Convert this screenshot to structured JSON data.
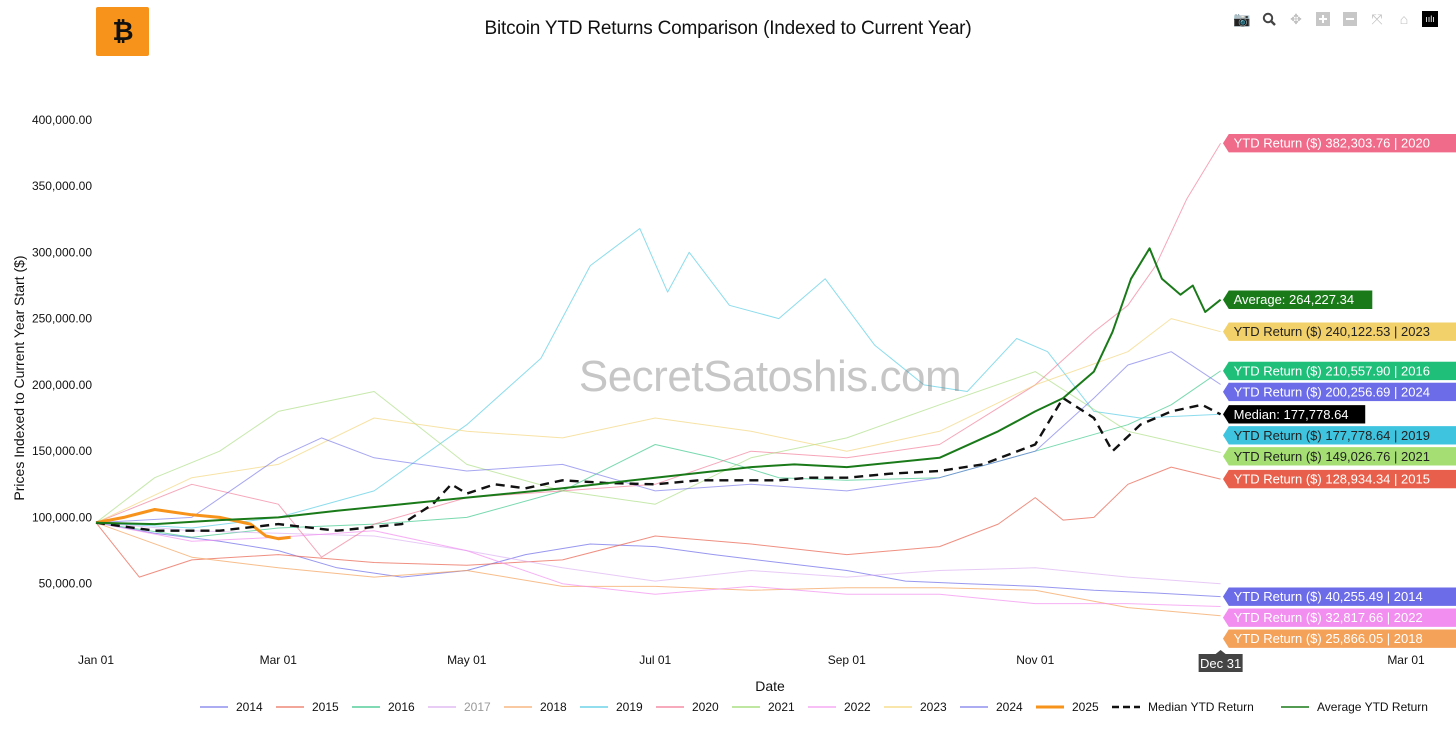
{
  "title": "Bitcoin YTD Returns Comparison (Indexed to Current Year)",
  "watermark": "SecretSatoshis.com",
  "logo_icon": "bitcoin-logo-icon",
  "modebar": [
    "camera-icon",
    "zoom-icon",
    "pan-icon",
    "zoom-in-icon",
    "zoom-out-icon",
    "autoscale-icon",
    "reset-axes-icon",
    "plotly-logo-icon"
  ],
  "chart_data": {
    "type": "line",
    "title": "Bitcoin YTD Returns Comparison (Indexed to Current Year)",
    "xlabel": "Date",
    "ylabel": "Prices Indexed to Current Year Start ($)",
    "x_range": [
      "2025-01-01",
      "2026-03-01"
    ],
    "ylim": [
      0,
      430000
    ],
    "x_ticks": [
      {
        "date": "2025-01-01",
        "label": "Jan 01"
      },
      {
        "date": "2025-03-01",
        "label": "Mar 01"
      },
      {
        "date": "2025-05-01",
        "label": "May 01"
      },
      {
        "date": "2025-07-01",
        "label": "Jul 01"
      },
      {
        "date": "2025-09-01",
        "label": "Sep 01"
      },
      {
        "date": "2025-11-01",
        "label": "Nov 01"
      },
      {
        "date": "2026-03-01",
        "label": "Mar 01"
      }
    ],
    "y_ticks": [
      {
        "value": 50000,
        "label": "50,000.00"
      },
      {
        "value": 100000,
        "label": "100,000.00"
      },
      {
        "value": 150000,
        "label": "150,000.00"
      },
      {
        "value": 200000,
        "label": "200,000.00"
      },
      {
        "value": 250000,
        "label": "250,000.00"
      },
      {
        "value": 300000,
        "label": "300,000.00"
      },
      {
        "value": 350000,
        "label": "350,000.00"
      },
      {
        "value": 400000,
        "label": "400,000.00"
      }
    ],
    "grid": false,
    "legend_position": "bottom",
    "hover_x_label": "Dec 31",
    "series": [
      {
        "name": "2014",
        "color": "#6c6be8",
        "width": 1,
        "dash": "solid",
        "opacity": 0.7,
        "x": [
          "01-01",
          "01-20",
          "02-10",
          "03-01",
          "03-20",
          "04-10",
          "05-01",
          "05-20",
          "06-10",
          "07-01",
          "07-20",
          "08-10",
          "09-01",
          "09-20",
          "10-10",
          "11-01",
          "11-20",
          "12-10",
          "12-31"
        ],
        "y": [
          96000,
          88000,
          82000,
          75000,
          62000,
          55000,
          60000,
          72000,
          80000,
          78000,
          72000,
          66000,
          60000,
          52000,
          50000,
          48000,
          45000,
          43000,
          40255
        ]
      },
      {
        "name": "2015",
        "color": "#e8604c",
        "width": 1,
        "dash": "solid",
        "opacity": 0.7,
        "x": [
          "01-01",
          "01-15",
          "02-01",
          "03-01",
          "04-01",
          "05-01",
          "06-01",
          "07-01",
          "08-01",
          "09-01",
          "10-01",
          "10-20",
          "11-01",
          "11-10",
          "11-20",
          "12-01",
          "12-15",
          "12-31"
        ],
        "y": [
          96000,
          55000,
          68000,
          72000,
          66000,
          64000,
          68000,
          86000,
          80000,
          72000,
          78000,
          95000,
          115000,
          98000,
          100000,
          125000,
          138000,
          128934
        ]
      },
      {
        "name": "2016",
        "color": "#1fbf7a",
        "width": 1,
        "dash": "solid",
        "opacity": 0.6,
        "x": [
          "01-01",
          "02-01",
          "03-01",
          "04-01",
          "05-01",
          "06-01",
          "07-01",
          "07-20",
          "08-10",
          "09-01",
          "10-01",
          "11-01",
          "12-01",
          "12-15",
          "12-31"
        ],
        "y": [
          96000,
          85000,
          92000,
          95000,
          100000,
          120000,
          155000,
          145000,
          130000,
          128000,
          130000,
          150000,
          170000,
          185000,
          210558
        ]
      },
      {
        "name": "2017",
        "color": "#d7a6f0",
        "width": 1,
        "dash": "solid",
        "opacity": 0.6,
        "x": [
          "01-01",
          "02-01",
          "03-01",
          "04-01",
          "05-01",
          "06-01",
          "07-01",
          "08-01",
          "09-01",
          "10-01",
          "11-01",
          "12-01",
          "12-31"
        ],
        "y": [
          96000,
          90000,
          88000,
          86000,
          75000,
          62000,
          52000,
          60000,
          55000,
          60000,
          62000,
          55000,
          50000
        ]
      },
      {
        "name": "2018",
        "color": "#f4a15a",
        "width": 1,
        "dash": "solid",
        "opacity": 0.7,
        "x": [
          "01-01",
          "02-01",
          "03-01",
          "04-01",
          "05-01",
          "06-01",
          "07-01",
          "08-01",
          "09-01",
          "10-01",
          "11-01",
          "12-01",
          "12-31"
        ],
        "y": [
          96000,
          70000,
          62000,
          55000,
          60000,
          48000,
          48000,
          45000,
          47000,
          47000,
          45000,
          32000,
          25866
        ]
      },
      {
        "name": "2019",
        "color": "#3fc4e0",
        "width": 1,
        "dash": "solid",
        "opacity": 0.6,
        "x": [
          "01-01",
          "02-01",
          "03-01",
          "04-01",
          "05-01",
          "05-25",
          "06-10",
          "06-26",
          "07-05",
          "07-12",
          "07-25",
          "08-10",
          "08-25",
          "09-10",
          "09-26",
          "10-10",
          "10-26",
          "11-05",
          "11-20",
          "12-05",
          "12-31"
        ],
        "y": [
          96000,
          92000,
          100000,
          120000,
          170000,
          220000,
          290000,
          318000,
          270000,
          300000,
          260000,
          250000,
          280000,
          230000,
          200000,
          195000,
          235000,
          225000,
          180000,
          175000,
          177779
        ]
      },
      {
        "name": "2020",
        "color": "#f06a8a",
        "width": 1,
        "dash": "solid",
        "opacity": 0.6,
        "x": [
          "01-01",
          "02-01",
          "03-01",
          "03-15",
          "04-01",
          "05-01",
          "06-01",
          "07-01",
          "08-01",
          "09-01",
          "10-01",
          "11-01",
          "11-20",
          "12-01",
          "12-10",
          "12-20",
          "12-31"
        ],
        "y": [
          96000,
          125000,
          110000,
          70000,
          95000,
          115000,
          120000,
          125000,
          150000,
          145000,
          155000,
          200000,
          240000,
          260000,
          290000,
          340000,
          382304
        ]
      },
      {
        "name": "2021",
        "color": "#8fd45a",
        "width": 1,
        "dash": "solid",
        "opacity": 0.5,
        "x": [
          "01-01",
          "01-20",
          "02-10",
          "03-01",
          "04-01",
          "05-01",
          "06-01",
          "07-01",
          "08-01",
          "09-01",
          "10-01",
          "11-01",
          "12-01",
          "12-31"
        ],
        "y": [
          96000,
          130000,
          150000,
          180000,
          195000,
          140000,
          120000,
          110000,
          145000,
          160000,
          185000,
          210000,
          165000,
          149027
        ]
      },
      {
        "name": "2022",
        "color": "#f28ef0",
        "width": 1,
        "dash": "solid",
        "opacity": 0.7,
        "x": [
          "01-01",
          "02-01",
          "03-01",
          "04-01",
          "05-01",
          "06-01",
          "07-01",
          "08-01",
          "09-01",
          "10-01",
          "11-01",
          "12-01",
          "12-31"
        ],
        "y": [
          96000,
          82000,
          85000,
          90000,
          75000,
          50000,
          42000,
          48000,
          42000,
          42000,
          35000,
          35000,
          32818
        ]
      },
      {
        "name": "2023",
        "color": "#f2d16a",
        "width": 1,
        "dash": "solid",
        "opacity": 0.6,
        "x": [
          "01-01",
          "02-01",
          "03-01",
          "04-01",
          "05-01",
          "06-01",
          "07-01",
          "08-01",
          "09-01",
          "10-01",
          "11-01",
          "12-01",
          "12-15",
          "12-31"
        ],
        "y": [
          96000,
          130000,
          140000,
          175000,
          165000,
          160000,
          175000,
          165000,
          150000,
          165000,
          200000,
          225000,
          250000,
          240123
        ]
      },
      {
        "name": "2024",
        "color": "#6c6be8",
        "width": 1,
        "dash": "solid",
        "opacity": 0.6,
        "x": [
          "01-01",
          "02-01",
          "03-01",
          "03-15",
          "04-01",
          "05-01",
          "06-01",
          "07-01",
          "08-01",
          "09-01",
          "10-01",
          "11-01",
          "11-20",
          "12-01",
          "12-15",
          "12-31"
        ],
        "y": [
          96000,
          100000,
          145000,
          160000,
          145000,
          135000,
          140000,
          120000,
          125000,
          120000,
          130000,
          150000,
          190000,
          215000,
          225000,
          200257
        ]
      },
      {
        "name": "2025",
        "color": "#f7931a",
        "width": 3,
        "dash": "solid",
        "opacity": 1,
        "x": [
          "01-01",
          "01-10",
          "01-20",
          "02-01",
          "02-10",
          "02-20",
          "02-25",
          "03-01",
          "03-05"
        ],
        "y": [
          96000,
          100000,
          106000,
          102000,
          100000,
          95000,
          86000,
          84000,
          85000
        ]
      },
      {
        "name": "Median YTD Return",
        "color": "#111111",
        "width": 2.4,
        "dash": "dash",
        "opacity": 1,
        "x": [
          "01-01",
          "01-20",
          "02-10",
          "03-01",
          "03-20",
          "04-10",
          "04-20",
          "04-26",
          "05-01",
          "05-10",
          "05-20",
          "06-01",
          "06-15",
          "07-01",
          "07-15",
          "08-01",
          "08-10",
          "08-20",
          "09-01",
          "09-15",
          "10-01",
          "10-15",
          "11-01",
          "11-10",
          "11-20",
          "11-26",
          "12-05",
          "12-15",
          "12-25",
          "12-31"
        ],
        "y": [
          96000,
          90000,
          90000,
          95000,
          90000,
          95000,
          110000,
          125000,
          118000,
          125000,
          122000,
          128000,
          126000,
          125000,
          128000,
          128000,
          128000,
          130000,
          130000,
          133000,
          135000,
          140000,
          155000,
          190000,
          175000,
          150000,
          170000,
          180000,
          185000,
          177779
        ]
      },
      {
        "name": "Average YTD Return",
        "color": "#1a7a1a",
        "width": 2,
        "dash": "solid",
        "opacity": 1,
        "x": [
          "01-01",
          "01-20",
          "02-10",
          "03-01",
          "03-20",
          "04-10",
          "05-01",
          "06-01",
          "07-01",
          "08-01",
          "08-15",
          "09-01",
          "10-01",
          "10-20",
          "11-01",
          "11-10",
          "11-20",
          "11-26",
          "12-02",
          "12-08",
          "12-12",
          "12-18",
          "12-22",
          "12-26",
          "12-31"
        ],
        "y": [
          96000,
          95000,
          98000,
          100000,
          105000,
          110000,
          115000,
          122000,
          130000,
          138000,
          140000,
          138000,
          145000,
          165000,
          180000,
          190000,
          210000,
          240000,
          280000,
          303000,
          280000,
          268000,
          275000,
          255000,
          264227
        ]
      }
    ],
    "end_labels": [
      {
        "text": "YTD Return ($) 382,303.76 | 2020",
        "color": "#f06a8a",
        "y": 382304
      },
      {
        "text": "Average: 264,227.34",
        "color": "#1a7a1a",
        "y": 264227
      },
      {
        "text": "YTD Return ($) 240,122.53 | 2023",
        "color": "#f2d16a",
        "y": 240123
      },
      {
        "text": "YTD Return ($) 210,557.90 | 2016",
        "color": "#1fbf7a",
        "y": 210558
      },
      {
        "text": "YTD Return ($) 200,256.69 | 2024",
        "color": "#6c6be8",
        "y": 200257
      },
      {
        "text": "Median: 177,778.64",
        "color": "#000000",
        "y": 177779
      },
      {
        "text": "YTD Return ($) 177,778.64 | 2019",
        "color": "#3fc4e0",
        "y": 177779
      },
      {
        "text": "YTD Return ($) 149,026.76 | 2021",
        "color": "#a5df73",
        "y": 149027
      },
      {
        "text": "YTD Return ($) 128,934.34 | 2015",
        "color": "#e8604c",
        "y": 128934
      },
      {
        "text": "YTD Return ($) 40,255.49 | 2014",
        "color": "#6c6be8",
        "y": 40255
      },
      {
        "text": "YTD Return ($) 32,817.66 | 2022",
        "color": "#f28ef0",
        "y": 32818
      },
      {
        "text": "YTD Return ($) 25,866.05 | 2018",
        "color": "#f4a15a",
        "y": 25866
      }
    ]
  }
}
